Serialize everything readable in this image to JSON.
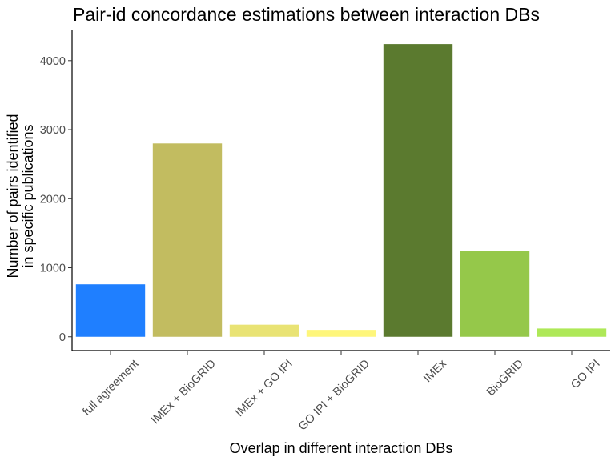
{
  "chart_data": {
    "type": "bar",
    "title": "Pair-id concordance estimations between interaction DBs",
    "xlabel": "Overlap in different interaction DBs",
    "ylabel_lines": [
      "Number of pairs identified",
      "in specific publications"
    ],
    "categories": [
      "full agreement",
      "IMEx + BioGRID",
      "IMEx + GO IPI",
      "GO IPI + BioGRID",
      "IMEx",
      "BioGRID",
      "GO IPI"
    ],
    "values": [
      760,
      2800,
      175,
      100,
      4240,
      1240,
      120
    ],
    "colors": [
      "#1f7fff",
      "#c2bc60",
      "#e9e374",
      "#fef67b",
      "#5b7a2f",
      "#95c84a",
      "#aee858"
    ],
    "yticks": [
      0,
      1000,
      2000,
      3000,
      4000
    ],
    "ylim": [
      -200,
      4450
    ],
    "grid": false,
    "legend": "none"
  }
}
